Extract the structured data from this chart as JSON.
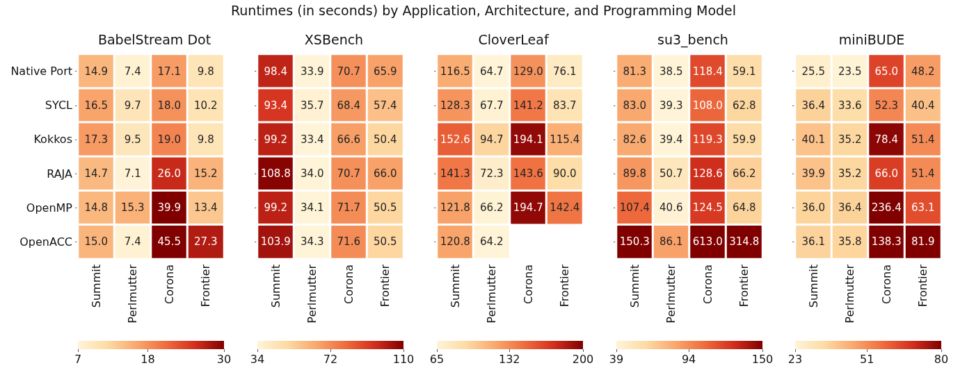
{
  "chart_data": [
    {
      "type": "other",
      "title": "Runtimes (in seconds) by Application,  Architecture, and Programming Model"
    },
    {
      "type": "heatmap",
      "title": "BabelStream Dot",
      "categories": [
        "Summit",
        "Perlmutter",
        "Corona",
        "Frontier"
      ],
      "y_categories": [
        "Native Port",
        "SYCL",
        "Kokkos",
        "RAJA",
        "OpenMP",
        "OpenACC"
      ],
      "cells": [
        [
          14.9,
          7.4,
          17.1,
          9.8
        ],
        [
          16.5,
          9.7,
          18.0,
          10.2
        ],
        [
          17.3,
          9.5,
          19.0,
          9.8
        ],
        [
          14.7,
          7.1,
          26.0,
          15.2
        ],
        [
          14.8,
          15.3,
          39.9,
          13.4
        ],
        [
          15.0,
          7.4,
          45.5,
          27.3
        ]
      ],
      "cell_labels": [
        [
          "14.9",
          "7.4",
          "17.1",
          "9.8"
        ],
        [
          "16.5",
          "9.7",
          "18.0",
          "10.2"
        ],
        [
          "17.3",
          "9.5",
          "19.0",
          "9.8"
        ],
        [
          "14.7",
          "7.1",
          "26.0",
          "15.2"
        ],
        [
          "14.8",
          "15.3",
          "39.9",
          "13.4"
        ],
        [
          "15.0",
          "7.4",
          "45.5",
          "27.3"
        ]
      ],
      "clim": [
        7,
        30
      ],
      "cticks": [
        7,
        18,
        30
      ],
      "data_labels": true
    },
    {
      "type": "heatmap",
      "title": "XSBench",
      "categories": [
        "Summit",
        "Perlmutter",
        "Corona",
        "Frontier"
      ],
      "y_categories": [
        null,
        null,
        null,
        null,
        null,
        null
      ],
      "cells": [
        [
          98.4,
          33.9,
          70.7,
          65.9
        ],
        [
          93.4,
          35.7,
          68.4,
          57.4
        ],
        [
          99.2,
          33.4,
          66.6,
          50.4
        ],
        [
          108.8,
          34.0,
          70.7,
          66.0
        ],
        [
          99.2,
          34.1,
          71.7,
          50.5
        ],
        [
          103.9,
          34.3,
          71.6,
          50.5
        ]
      ],
      "cell_labels": [
        [
          "98.4",
          "33.9",
          "70.7",
          "65.9"
        ],
        [
          "93.4",
          "35.7",
          "68.4",
          "57.4"
        ],
        [
          "99.2",
          "33.4",
          "66.6",
          "50.4"
        ],
        [
          "108.8",
          "34.0",
          "70.7",
          "66.0"
        ],
        [
          "99.2",
          "34.1",
          "71.7",
          "50.5"
        ],
        [
          "103.9",
          "34.3",
          "71.6",
          "50.5"
        ]
      ],
      "clim": [
        34,
        110
      ],
      "cticks": [
        34,
        72,
        110
      ],
      "data_labels": true,
      "tick_labels": "x"
    },
    {
      "type": "heatmap",
      "title": "CloverLeaf",
      "categories": [
        "Summit",
        "Perlmutter",
        "Corona",
        "Frontier"
      ],
      "y_categories": [
        null,
        null,
        null,
        null,
        null,
        null
      ],
      "cells": [
        [
          116.5,
          64.7,
          129.0,
          76.1
        ],
        [
          128.3,
          67.7,
          141.2,
          83.7
        ],
        [
          152.6,
          94.7,
          194.1,
          115.4
        ],
        [
          141.3,
          72.3,
          143.6,
          90.0
        ],
        [
          121.8,
          66.2,
          194.7,
          142.4
        ],
        [
          120.8,
          64.2,
          null,
          null
        ]
      ],
      "cell_labels": [
        [
          "116.5",
          "64.7",
          "129.0",
          "76.1"
        ],
        [
          "128.3",
          "67.7",
          "141.2",
          "83.7"
        ],
        [
          "152.6",
          "94.7",
          "194.1",
          "115.4"
        ],
        [
          "141.3",
          "72.3",
          "143.6",
          "90.0"
        ],
        [
          "121.8",
          "66.2",
          "194.7",
          "142.4"
        ],
        [
          "120.8",
          "64.2",
          null,
          null
        ]
      ],
      "clim": [
        65,
        200
      ],
      "cticks": [
        65,
        132,
        200
      ],
      "data_labels": true,
      "tick_labels": "x"
    },
    {
      "type": "heatmap",
      "title": "su3_bench",
      "categories": [
        "Summit",
        "Perlmutter",
        "Corona",
        "Frontier"
      ],
      "y_categories": [
        null,
        null,
        null,
        null,
        null,
        null
      ],
      "cells": [
        [
          81.3,
          38.5,
          118.4,
          59.1
        ],
        [
          83.0,
          39.3,
          108.0,
          62.8
        ],
        [
          82.6,
          39.4,
          119.3,
          59.9
        ],
        [
          89.8,
          50.7,
          128.6,
          66.2
        ],
        [
          107.4,
          40.6,
          124.5,
          64.8
        ],
        [
          150.3,
          86.1,
          613.0,
          314.8
        ]
      ],
      "cell_labels": [
        [
          "81.3",
          "38.5",
          "118.4",
          "59.1"
        ],
        [
          "83.0",
          "39.3",
          "108.0",
          "62.8"
        ],
        [
          "82.6",
          "39.4",
          "119.3",
          "59.9"
        ],
        [
          "89.8",
          "50.7",
          "128.6",
          "66.2"
        ],
        [
          "107.4",
          "40.6",
          "124.5",
          "64.8"
        ],
        [
          "150.3",
          "86.1",
          "613.0",
          "314.8"
        ]
      ],
      "clim": [
        39,
        150
      ],
      "cticks": [
        39,
        94,
        150
      ],
      "data_labels": true,
      "tick_labels": "x"
    },
    {
      "type": "heatmap",
      "title": "miniBUDE",
      "categories": [
        "Summit",
        "Perlmutter",
        "Corona",
        "Frontier"
      ],
      "y_categories": [
        null,
        null,
        null,
        null,
        null,
        null
      ],
      "cells": [
        [
          25.5,
          23.5,
          65.0,
          48.2
        ],
        [
          36.4,
          33.6,
          52.3,
          40.4
        ],
        [
          40.1,
          35.2,
          78.4,
          51.4
        ],
        [
          39.9,
          35.2,
          66.0,
          51.4
        ],
        [
          36.0,
          36.4,
          236.4,
          63.1
        ],
        [
          36.1,
          35.8,
          138.3,
          81.9
        ]
      ],
      "cell_labels": [
        [
          "25.5",
          "23.5",
          "65.0",
          "48.2"
        ],
        [
          "36.4",
          "33.6",
          "52.3",
          "40.4"
        ],
        [
          "40.1",
          "35.2",
          "78.4",
          "51.4"
        ],
        [
          "39.9",
          "35.2",
          "66.0",
          "51.4"
        ],
        [
          "36.0",
          "36.4",
          "236.4",
          "63.1"
        ],
        [
          "36.1",
          "35.8",
          "138.3",
          "81.9"
        ]
      ],
      "clim": [
        23,
        80
      ],
      "cticks": [
        23,
        51,
        80
      ],
      "data_labels": true,
      "tick_labels": "x"
    }
  ]
}
